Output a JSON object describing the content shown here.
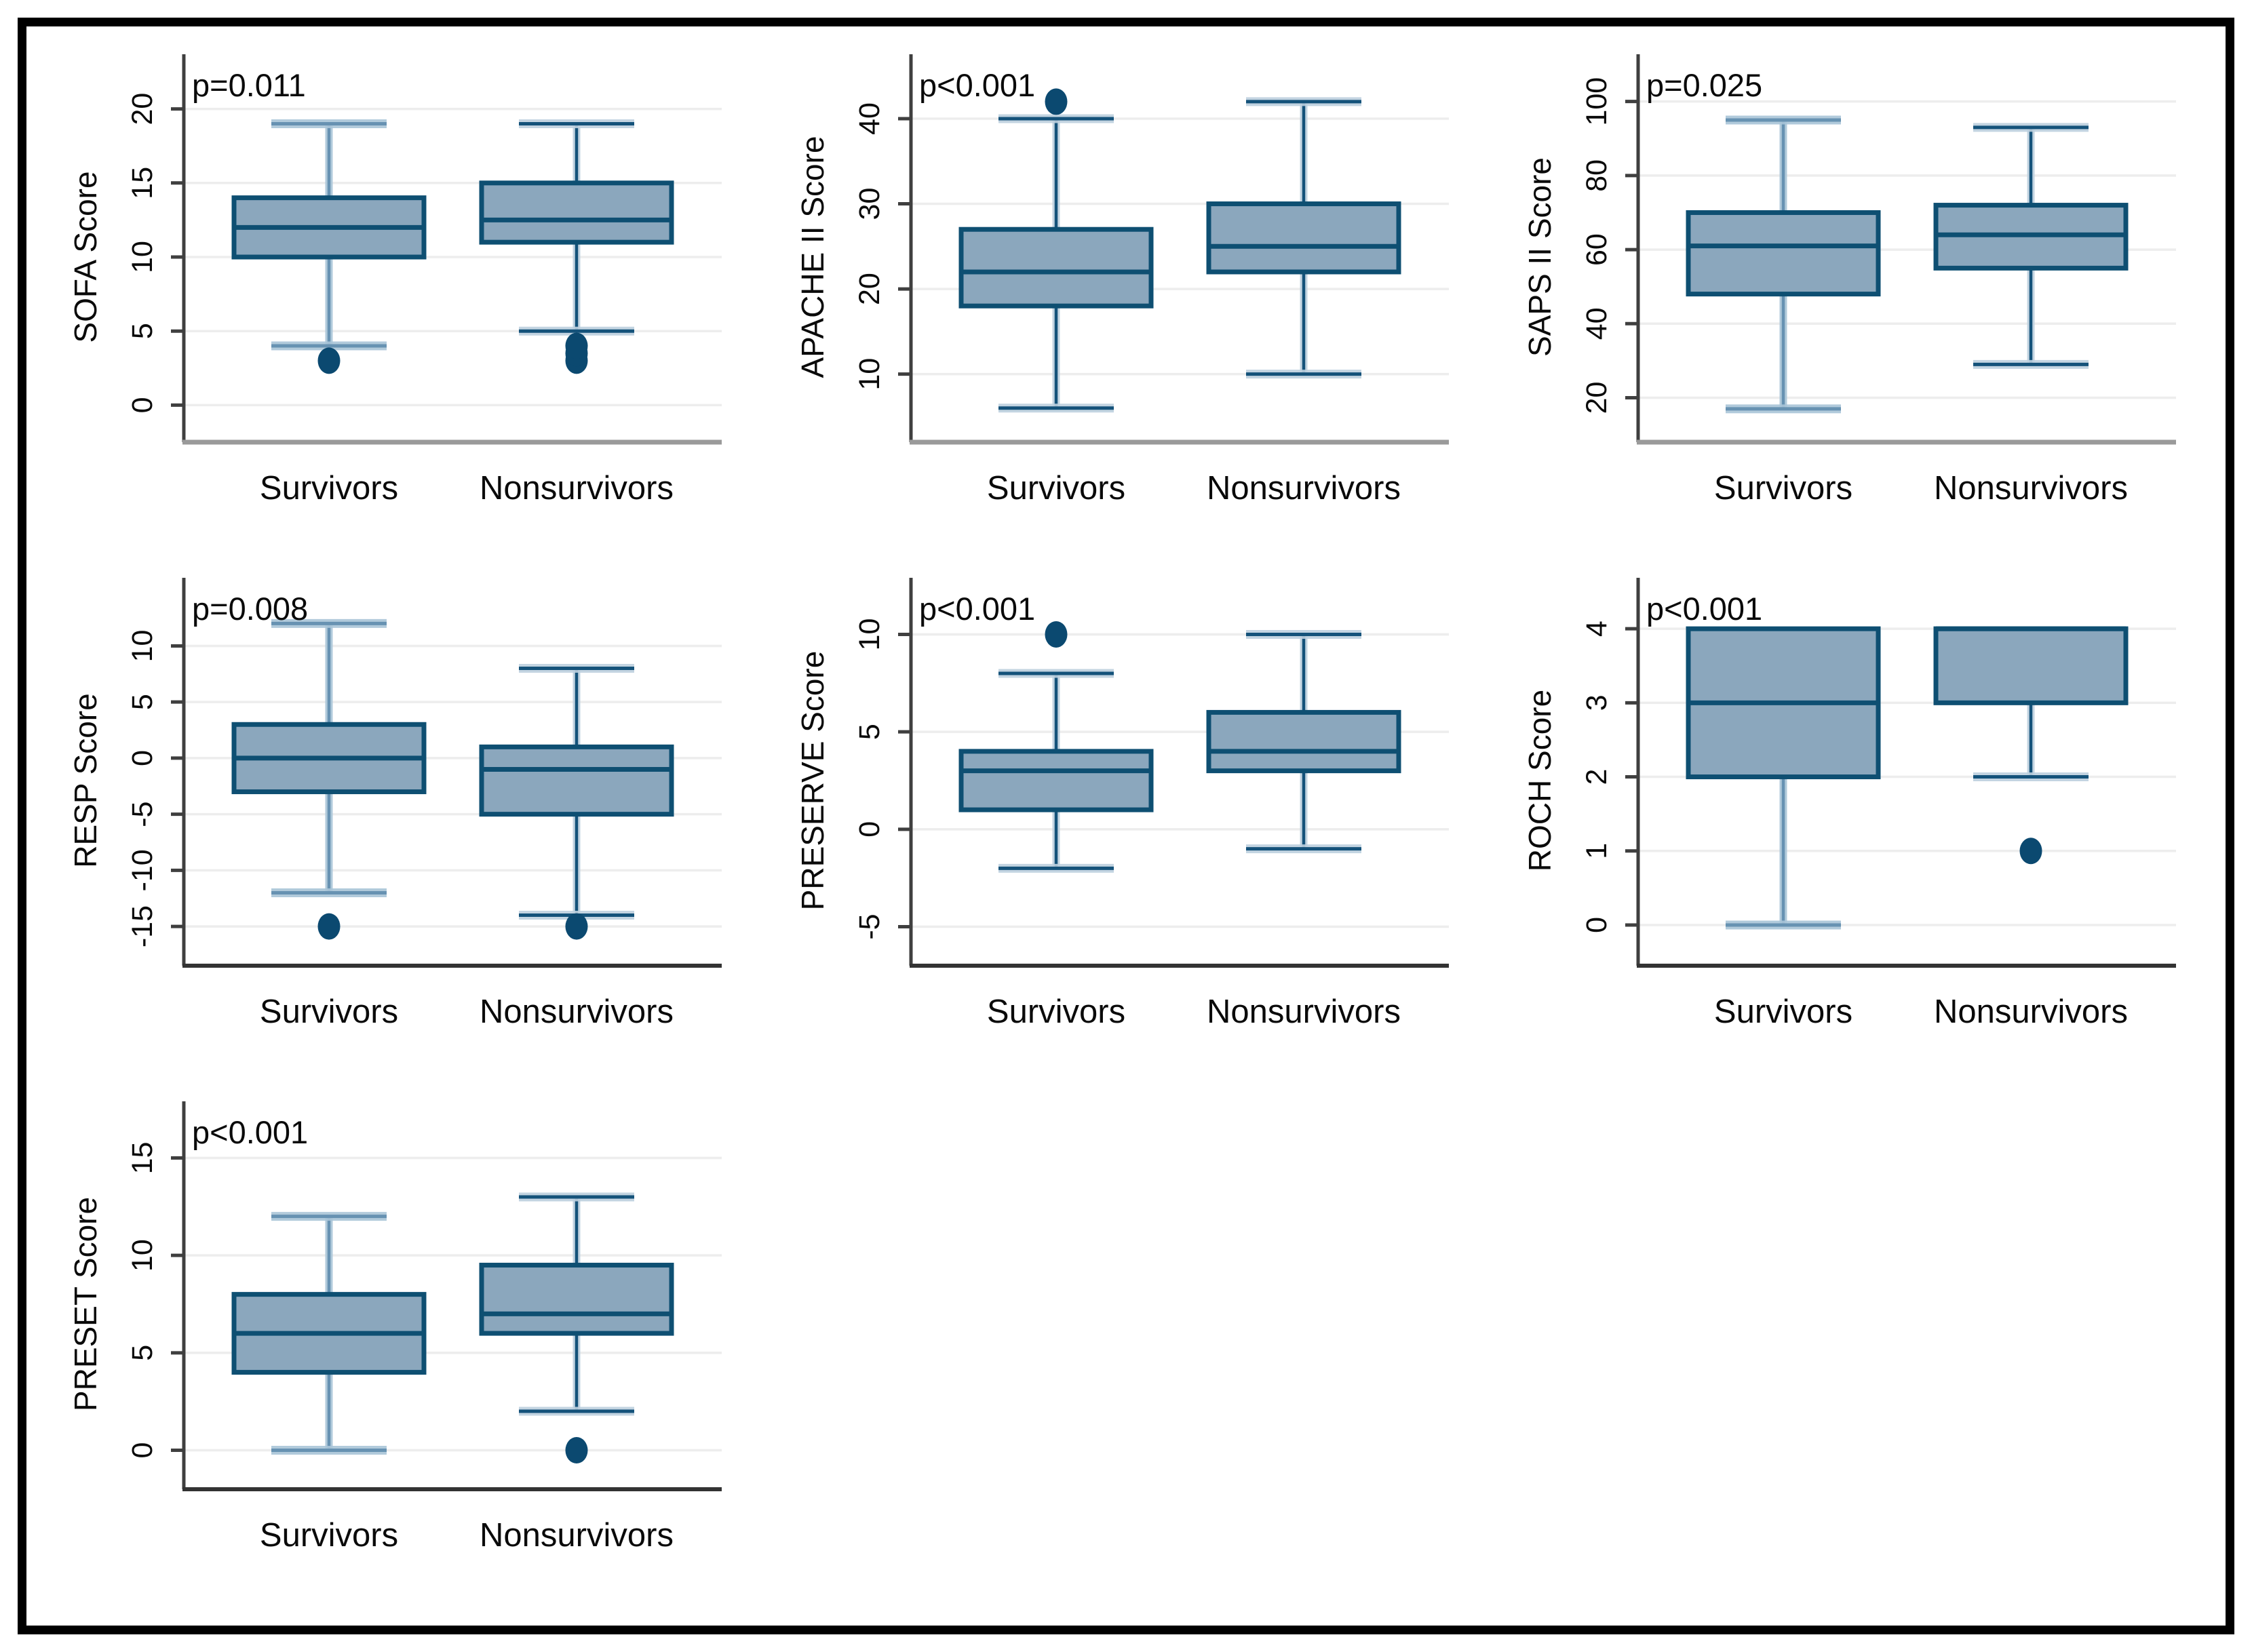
{
  "figure": {
    "background": "#ffffff",
    "border_color": "#000000",
    "group_labels": [
      "Survivors",
      "Nonsurvivors"
    ]
  },
  "style": {
    "box_fill": "#8BA7BD",
    "box_edge": "#0E4F72",
    "median_color": "#0E4F72",
    "outlier_color": "#0B4970",
    "whisker_light_core": "#6792B2",
    "whisker_light_halo": "#A9C4D7",
    "whisker_dark_core": "#14527A",
    "whisker_dark_halo": "#BCCFDE",
    "gridline_color": "#EDEDED",
    "y_axis_color": "#3F3F3F",
    "x_axis_color_row1": "#9A9A9A",
    "x_axis_color_rows23": "#333333",
    "text_color": "#0A0A0A"
  },
  "chart_data": [
    {
      "type": "box",
      "row": 1,
      "col": 1,
      "p_label": "p=0.011",
      "ylabel": "SOFA Score",
      "yticks": [
        0,
        5,
        10,
        15,
        20
      ],
      "ylim": [
        -2.5,
        22.5
      ],
      "categories": [
        "Survivors",
        "Nonsurvivors"
      ],
      "series": [
        {
          "name": "Survivors",
          "min": 4,
          "q1": 10,
          "median": 12,
          "q3": 14,
          "max": 19,
          "outliers": [
            3
          ],
          "whisker": "light"
        },
        {
          "name": "Nonsurvivors",
          "min": 5,
          "q1": 11,
          "median": 12.5,
          "q3": 15,
          "max": 19,
          "outliers": [
            3,
            3.5,
            4
          ],
          "whisker": "dark"
        }
      ]
    },
    {
      "type": "box",
      "row": 1,
      "col": 2,
      "p_label": "p<0.001",
      "ylabel": "APACHE II Score",
      "yticks": [
        10,
        20,
        30,
        40
      ],
      "ylim": [
        2,
        45.5
      ],
      "categories": [
        "Survivors",
        "Nonsurvivors"
      ],
      "series": [
        {
          "name": "Survivors",
          "min": 6,
          "q1": 18,
          "median": 22,
          "q3": 27,
          "max": 40,
          "outliers": [
            42
          ],
          "whisker": "dark"
        },
        {
          "name": "Nonsurvivors",
          "min": 10,
          "q1": 22,
          "median": 25,
          "q3": 30,
          "max": 42,
          "outliers": [],
          "whisker": "dark"
        }
      ]
    },
    {
      "type": "box",
      "row": 1,
      "col": 3,
      "p_label": "p=0.025",
      "ylabel": "SAPS II Score",
      "yticks": [
        20,
        40,
        60,
        80,
        100
      ],
      "ylim": [
        8,
        108
      ],
      "categories": [
        "Survivors",
        "Nonsurvivors"
      ],
      "series": [
        {
          "name": "Survivors",
          "min": 17,
          "q1": 48,
          "median": 61,
          "q3": 70,
          "max": 95,
          "outliers": [],
          "whisker": "light"
        },
        {
          "name": "Nonsurvivors",
          "min": 29,
          "q1": 55,
          "median": 64,
          "q3": 72,
          "max": 93,
          "outliers": [],
          "whisker": "dark"
        }
      ]
    },
    {
      "type": "box",
      "row": 2,
      "col": 1,
      "p_label": "p=0.008",
      "ylabel": "RESP Score",
      "yticks": [
        -15,
        -10,
        -5,
        0,
        5,
        10
      ],
      "ylim": [
        -18.5,
        14.5
      ],
      "categories": [
        "Survivors",
        "Nonsurvivors"
      ],
      "series": [
        {
          "name": "Survivors",
          "min": -12,
          "q1": -3,
          "median": 0,
          "q3": 3,
          "max": 12,
          "outliers": [
            -15
          ],
          "whisker": "light"
        },
        {
          "name": "Nonsurvivors",
          "min": -14,
          "q1": -5,
          "median": -1,
          "q3": 1,
          "max": 8,
          "outliers": [
            -15
          ],
          "whisker": "dark"
        }
      ]
    },
    {
      "type": "box",
      "row": 2,
      "col": 2,
      "p_label": "p<0.001",
      "ylabel": "PRESERVE Score",
      "yticks": [
        -5,
        0,
        5,
        10
      ],
      "ylim": [
        -7,
        12
      ],
      "categories": [
        "Survivors",
        "Nonsurvivors"
      ],
      "series": [
        {
          "name": "Survivors",
          "min": -2,
          "q1": 1,
          "median": 3,
          "q3": 4,
          "max": 8,
          "outliers": [
            10
          ],
          "whisker": "dark"
        },
        {
          "name": "Nonsurvivors",
          "min": -1,
          "q1": 3,
          "median": 4,
          "q3": 6,
          "max": 10,
          "outliers": [],
          "whisker": "dark"
        }
      ]
    },
    {
      "type": "box",
      "row": 2,
      "col": 3,
      "p_label": "p<0.001",
      "ylabel": "ROCH Score",
      "yticks": [
        0,
        1,
        2,
        3,
        4
      ],
      "ylim": [
        -0.55,
        4.45
      ],
      "categories": [
        "Survivors",
        "Nonsurvivors"
      ],
      "series": [
        {
          "name": "Survivors",
          "min": 0,
          "q1": 2,
          "median": 3,
          "q3": 4,
          "max": 4,
          "outliers": [],
          "whisker": "light"
        },
        {
          "name": "Nonsurvivors",
          "min": 2,
          "q1": 3,
          "median": 4,
          "q3": 4,
          "max": 4,
          "outliers": [
            1
          ],
          "whisker": "dark"
        }
      ]
    },
    {
      "type": "box",
      "row": 3,
      "col": 1,
      "p_label": "p<0.001",
      "ylabel": "PRESET Score",
      "yticks": [
        0,
        5,
        10,
        15
      ],
      "ylim": [
        -2,
        17
      ],
      "categories": [
        "Survivors",
        "Nonsurvivors"
      ],
      "series": [
        {
          "name": "Survivors",
          "min": 0,
          "q1": 4,
          "median": 6,
          "q3": 8,
          "max": 12,
          "outliers": [],
          "whisker": "light"
        },
        {
          "name": "Nonsurvivors",
          "min": 2,
          "q1": 6,
          "median": 7,
          "q3": 9.5,
          "max": 13,
          "outliers": [
            0
          ],
          "whisker": "dark"
        }
      ]
    }
  ]
}
